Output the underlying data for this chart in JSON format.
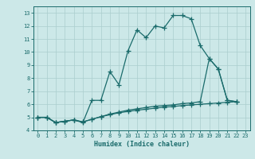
{
  "xlabel": "Humidex (Indice chaleur)",
  "bg_color": "#cce8e8",
  "grid_color": "#aacece",
  "line_color": "#1a6b6b",
  "xlim": [
    -0.5,
    23.5
  ],
  "ylim": [
    4,
    13.5
  ],
  "xticks": [
    0,
    1,
    2,
    3,
    4,
    5,
    6,
    7,
    8,
    9,
    10,
    11,
    12,
    13,
    14,
    15,
    16,
    17,
    18,
    19,
    20,
    21,
    22,
    23
  ],
  "yticks": [
    4,
    5,
    6,
    7,
    8,
    9,
    10,
    11,
    12,
    13
  ],
  "line1_x": [
    0,
    1,
    2,
    3,
    4,
    5,
    6,
    7,
    8,
    9,
    10,
    11,
    12,
    13,
    14,
    15,
    16,
    17,
    18,
    19,
    20,
    21,
    22
  ],
  "line1_y": [
    5.0,
    5.0,
    4.6,
    4.7,
    4.8,
    4.6,
    6.3,
    6.3,
    8.5,
    7.5,
    10.1,
    11.7,
    11.1,
    12.0,
    11.85,
    12.8,
    12.8,
    12.55,
    10.5,
    9.5,
    8.7,
    6.3,
    6.2
  ],
  "line2_x": [
    0,
    1,
    2,
    3,
    4,
    5,
    6,
    7,
    8,
    9,
    10,
    11,
    12,
    13,
    14,
    15,
    16,
    17,
    18,
    19,
    20,
    21,
    22
  ],
  "line2_y": [
    5.0,
    5.0,
    4.6,
    4.7,
    4.8,
    4.65,
    4.85,
    5.05,
    5.25,
    5.4,
    5.55,
    5.65,
    5.75,
    5.85,
    5.9,
    5.95,
    6.05,
    6.1,
    6.2,
    9.5,
    8.7,
    6.3,
    6.2
  ],
  "line3_x": [
    0,
    1,
    2,
    3,
    4,
    5,
    6,
    7,
    8,
    9,
    10,
    11,
    12,
    13,
    14,
    15,
    16,
    17,
    18,
    19,
    20,
    21,
    22
  ],
  "line3_y": [
    5.0,
    5.0,
    4.6,
    4.7,
    4.8,
    4.65,
    4.85,
    5.05,
    5.2,
    5.35,
    5.45,
    5.55,
    5.62,
    5.7,
    5.78,
    5.83,
    5.9,
    5.95,
    6.0,
    6.05,
    6.1,
    6.15,
    6.2
  ]
}
